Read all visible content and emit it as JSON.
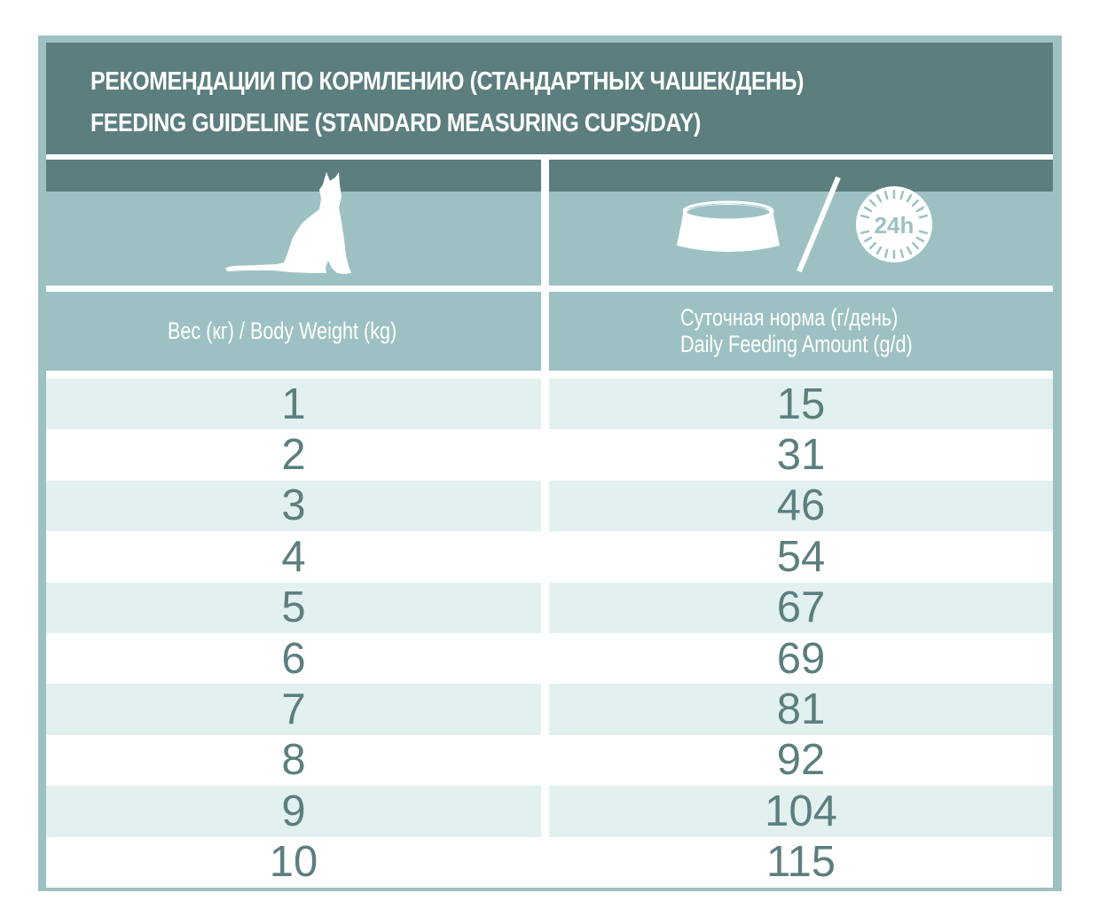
{
  "title": {
    "line_ru": "РЕКОМЕНДАЦИИ ПО КОРМЛЕНИЮ (СТАНДАРТНЫХ ЧАШЕК/ДЕНЬ)",
    "line_en": "FEEDING GUIDELINE (STANDARD MEASURING CUPS/DAY)"
  },
  "icons": {
    "left": "cat-icon",
    "right_bowl": "food-bowl-icon",
    "right_clock": "clock-24h-icon",
    "clock_label": "24h"
  },
  "columns": {
    "weight": "Вес (кг) / Body Weight (kg)",
    "amount_ru": "Суточная норма (г/день)",
    "amount_en": "Daily Feeding Amount (g/d)"
  },
  "rows": [
    {
      "weight": "1",
      "amount": "15"
    },
    {
      "weight": "2",
      "amount": "31"
    },
    {
      "weight": "3",
      "amount": "46"
    },
    {
      "weight": "4",
      "amount": "54"
    },
    {
      "weight": "5",
      "amount": "67"
    },
    {
      "weight": "6",
      "amount": "69"
    },
    {
      "weight": "7",
      "amount": "81"
    },
    {
      "weight": "8",
      "amount": "92"
    },
    {
      "weight": "9",
      "amount": "104"
    },
    {
      "weight": "10",
      "amount": "115"
    }
  ],
  "colors": {
    "dark_teal": "#5c7e7e",
    "light_teal": "#9dc1c3",
    "row_tint": "#e3f0f0"
  }
}
